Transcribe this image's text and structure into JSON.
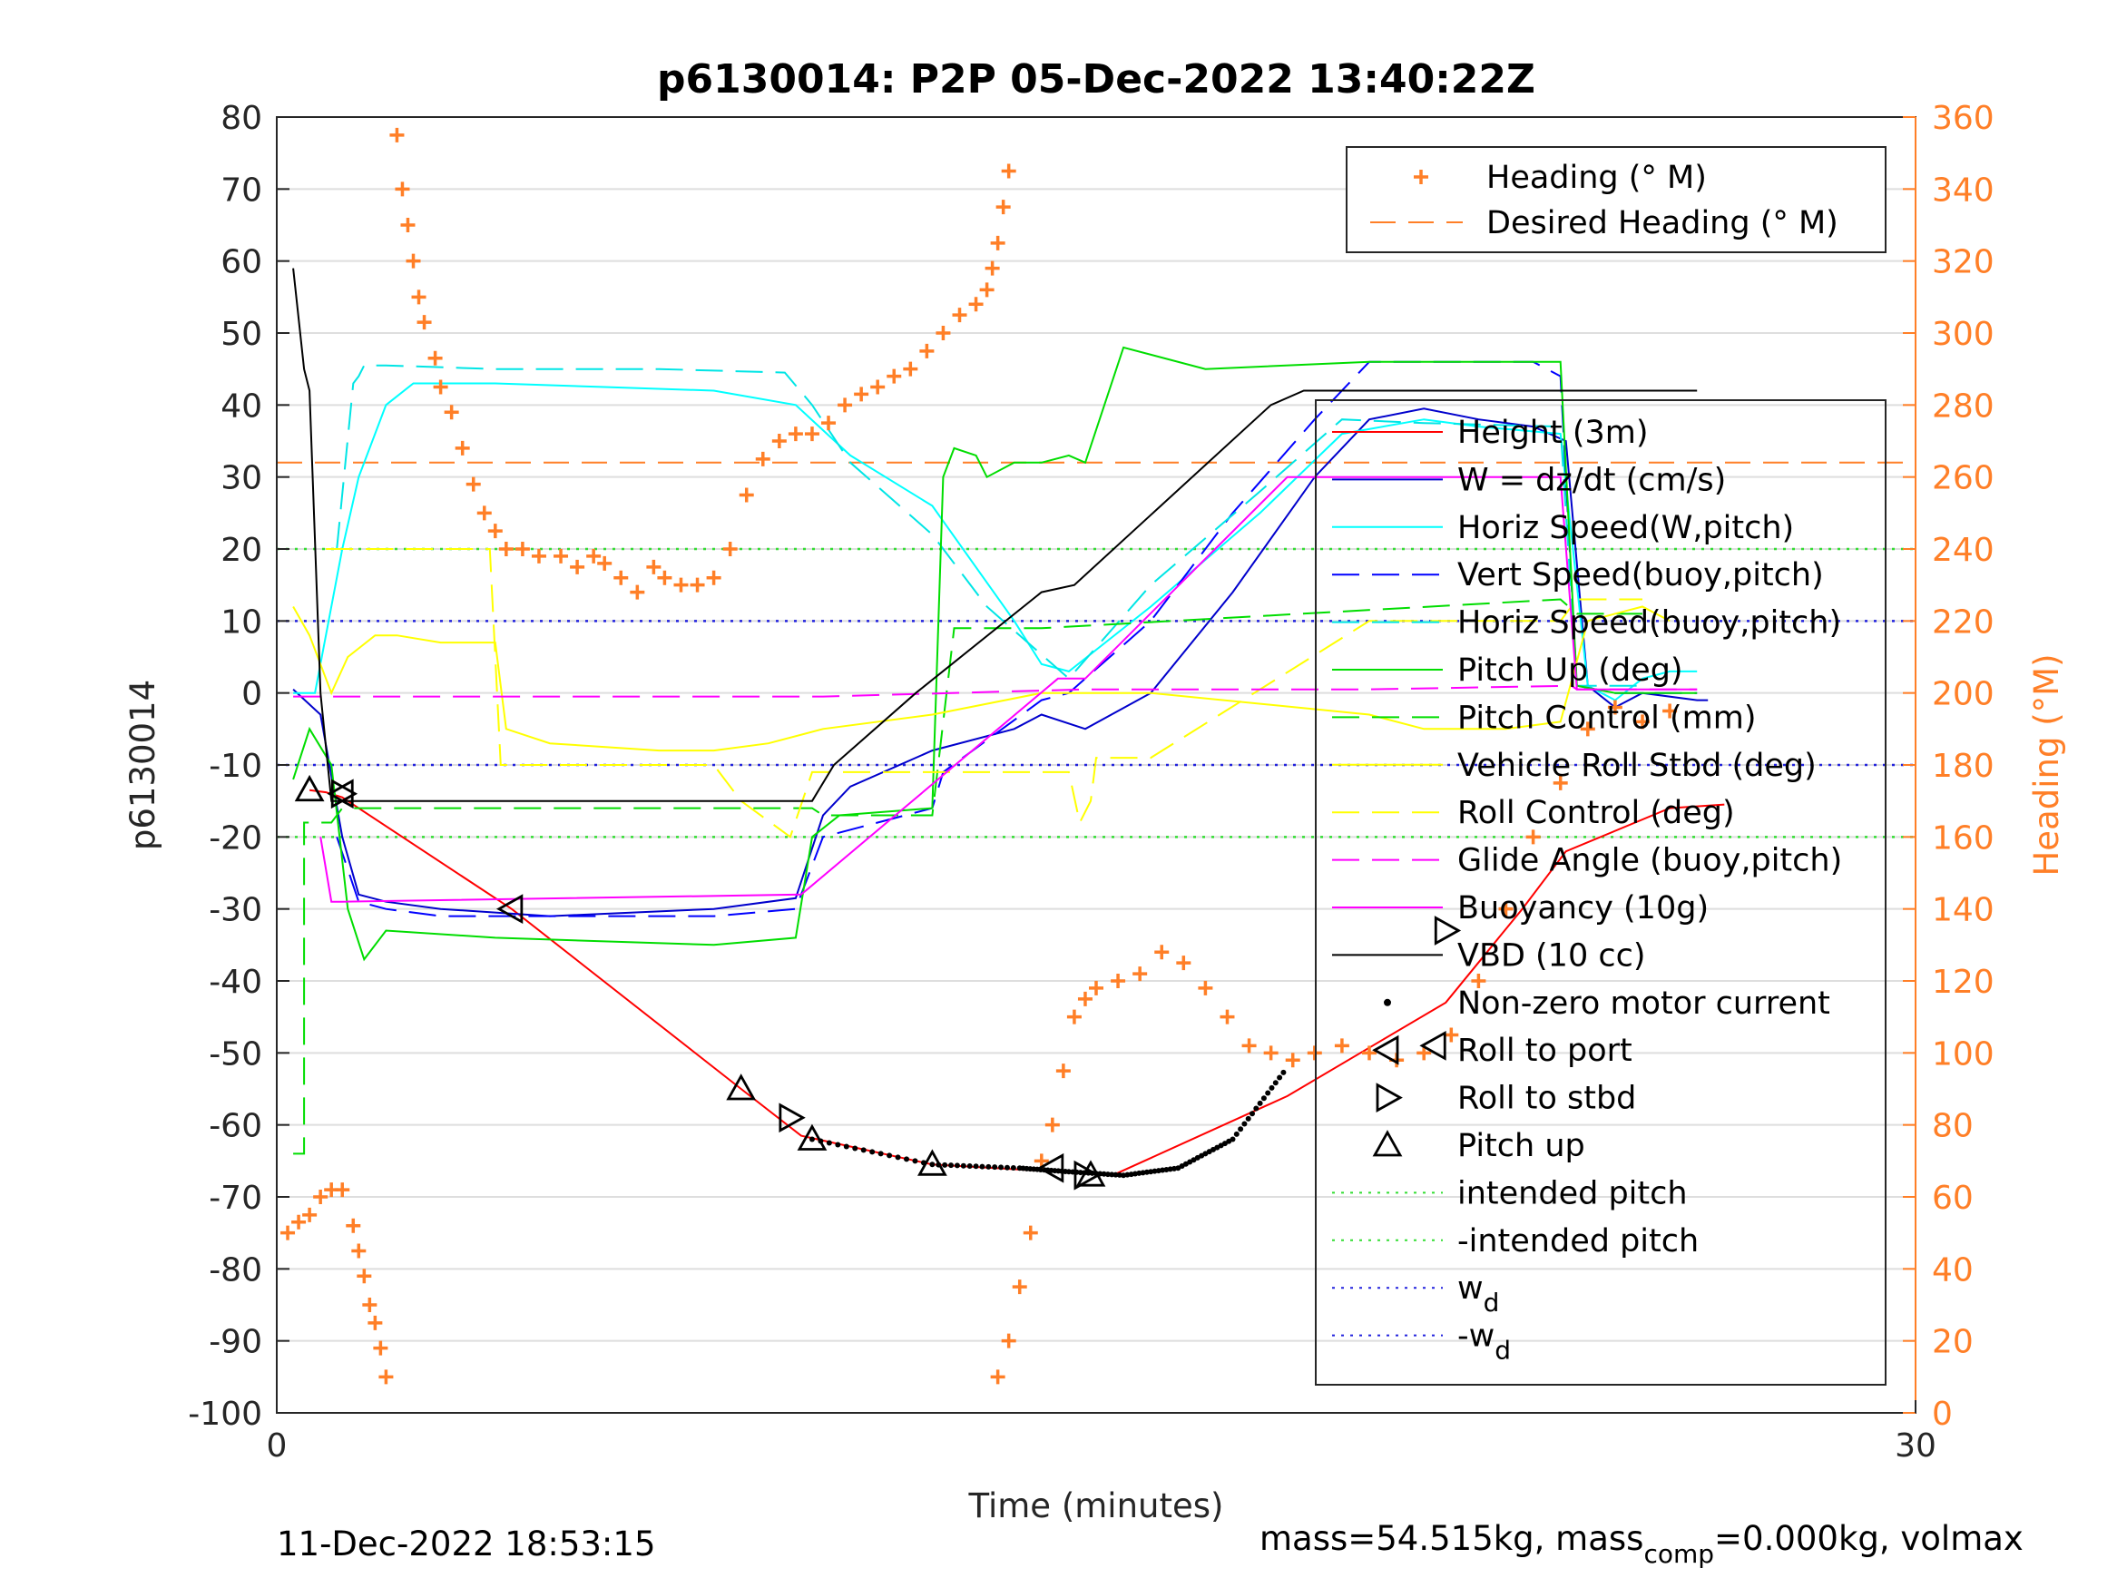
{
  "title": "p6130014: P2P 05-Dec-2022 13:40:22Z",
  "footer_left": "11-Dec-2022 18:53:15",
  "footer_right_parts": [
    "mass=54.515kg, mass",
    "comp",
    "=0.000kg, volmax"
  ],
  "colors": {
    "height": "#ff0000",
    "w": "#0000cc",
    "horiz_w": "#00ffff",
    "vert_buoy": "#0000ff",
    "horiz_buoy": "#00e5e5",
    "pitch_up": "#00dd00",
    "pitch_control": "#00dd00",
    "roll": "#ffff00",
    "roll_control": "#ffff00",
    "glide": "#ff00ff",
    "buoyancy": "#ff00ff",
    "vbd": "#000000",
    "heading": "#ff7f27",
    "intended": "#33dd33",
    "wd": "#2222dd"
  },
  "chart_data": {
    "type": "line",
    "xlabel": "Time (minutes)",
    "ylabel": "p6130014",
    "ylabel_right": "Heading (°M)",
    "xlim": [
      0,
      30
    ],
    "ylim": [
      -100,
      80
    ],
    "ylim_right": [
      0,
      360
    ],
    "x_ticks": [
      0,
      30
    ],
    "y_ticks": [
      80,
      70,
      60,
      50,
      40,
      30,
      20,
      10,
      0,
      -10,
      -20,
      -30,
      -40,
      -50,
      -60,
      -70,
      -80,
      -90,
      -100
    ],
    "y_ticks_right": [
      360,
      340,
      320,
      300,
      280,
      260,
      240,
      220,
      200,
      180,
      160,
      140,
      120,
      100,
      80,
      60,
      40,
      20,
      0
    ],
    "grid": true,
    "legend_right": [
      "Heading (° M)",
      "Desired Heading (° M)"
    ],
    "legend_main": [
      "Height (3m)",
      "W = dz/dt (cm/s)",
      "Horiz Speed(W,pitch)",
      "Vert Speed(buoy,pitch)",
      "Horiz Speed(buoy,pitch)",
      "Pitch Up (deg)",
      "Pitch Control (mm)",
      "Vehicle Roll Stbd (deg)",
      "Roll Control (deg)",
      "Glide Angle (buoy,pitch)",
      "Buoyancy (10g)",
      "VBD (10 cc)",
      "Non-zero motor current",
      "Roll to port",
      "Roll to stbd",
      "Pitch up",
      "intended pitch",
      "-intended pitch",
      "w",
      "-w"
    ],
    "legend_subscripts": {
      "w": "d",
      "-w": "d"
    },
    "series": [
      {
        "name": "Height (3m)",
        "x": [
          0.6,
          0.9,
          1.2,
          4.3,
          8.5,
          9.6,
          12,
          14.3,
          15.3,
          18.5,
          21.4,
          22.8,
          23.6,
          25.5,
          26.5
        ],
        "y": [
          -13.5,
          -13.8,
          -14.5,
          -30,
          -55,
          -61.5,
          -65.5,
          -66.5,
          -67,
          -56,
          -43,
          -30,
          -22,
          -16,
          -15.5
        ]
      },
      {
        "name": "W = dz/dt (cm/s)",
        "x": [
          0.3,
          0.8,
          1.2,
          1.5,
          2,
          3,
          5,
          8,
          9.5,
          10,
          10.5,
          12,
          13.5,
          14,
          14.8,
          16,
          17.5,
          19,
          20,
          21,
          22,
          23,
          23.6,
          24,
          24.5,
          25,
          26,
          26.2
        ],
        "y": [
          0.5,
          -3,
          -20,
          -28,
          -29,
          -30,
          -31,
          -30,
          -28.5,
          -17,
          -13,
          -8,
          -5,
          -3,
          -5,
          0,
          14,
          30,
          38,
          39.5,
          38,
          37,
          35,
          1,
          -2,
          0,
          -1,
          -1
        ]
      },
      {
        "name": "Horiz Speed(W,pitch)",
        "x": [
          0.3,
          0.7,
          1.2,
          1.5,
          2,
          2.5,
          4,
          6,
          8,
          9.5,
          10.5,
          12,
          13.5,
          14,
          14.5,
          16,
          18,
          19.5,
          21,
          22,
          23.5,
          24,
          24.5,
          25,
          25.5,
          26
        ],
        "y": [
          0,
          0,
          20,
          30,
          40,
          43,
          43,
          42.5,
          42,
          40,
          33,
          26,
          10,
          4,
          3,
          12,
          25,
          36,
          38,
          37,
          36,
          1,
          -1,
          2,
          3,
          3
        ]
      },
      {
        "name": "Vert Speed(buoy,pitch)",
        "x": [
          1.1,
          1.5,
          2,
          3,
          5,
          8,
          9.5,
          10,
          11,
          12,
          12.2,
          14,
          14.5,
          16,
          17.5,
          19,
          20,
          21.5,
          23,
          23.5,
          23.8,
          24.5,
          26
        ],
        "y": [
          -20,
          -29,
          -30,
          -31,
          -31,
          -31,
          -30,
          -20,
          -18,
          -16,
          -11,
          -1,
          0,
          10,
          25,
          38,
          46,
          46,
          46,
          44,
          1,
          0,
          0
        ]
      },
      {
        "name": "Horiz Speed(buoy,pitch)",
        "x": [
          1.1,
          1.4,
          1.5,
          1.6,
          2,
          4,
          7,
          9.3,
          9.8,
          10.5,
          12,
          13,
          14.5,
          16,
          18,
          19.5,
          21,
          23.5,
          23.8,
          25
        ],
        "y": [
          20,
          43,
          44,
          45.5,
          45.5,
          45,
          45,
          44.5,
          40,
          32,
          22,
          12,
          2,
          15,
          28,
          38,
          37.5,
          37,
          1,
          1
        ]
      },
      {
        "name": "Pitch Up (deg)",
        "x": [
          0.3,
          0.6,
          1.0,
          1.3,
          1.6,
          2,
          4,
          8,
          9.5,
          9.8,
          10.3,
          12,
          12.2,
          12.4,
          12.8,
          13,
          13.5,
          14,
          14.5,
          14.8,
          15.5,
          17,
          20,
          23.5,
          23.8,
          24.5,
          25.5,
          26
        ],
        "y": [
          -12,
          -5,
          -10,
          -30,
          -37,
          -33,
          -34,
          -35,
          -34,
          -20,
          -17,
          -16,
          30,
          34,
          33,
          30,
          32,
          32,
          33,
          32,
          48,
          45,
          46,
          46,
          1,
          0,
          0,
          0
        ]
      },
      {
        "name": "Pitch Control (mm)",
        "x": [
          0.3,
          0.5,
          0.5,
          1.0,
          1.2,
          9.8,
          10,
          12,
          12.4,
          14,
          23.5,
          23.8,
          25
        ],
        "y": [
          -64,
          -64,
          -18,
          -18,
          -16,
          -16,
          -17,
          -17,
          9,
          9,
          13,
          11,
          11
        ]
      },
      {
        "name": "Vehicle Roll Stbd (deg)",
        "x": [
          0.3,
          0.6,
          1.0,
          1.3,
          1.8,
          2.2,
          3,
          4,
          4.2,
          5,
          7,
          8,
          9,
          10,
          12,
          14,
          16,
          20,
          21,
          22.5,
          23.5,
          24,
          25,
          25.5
        ],
        "y": [
          12,
          8,
          0,
          5,
          8,
          8,
          7,
          7,
          -5,
          -7,
          -8,
          -8,
          -7,
          -5,
          -3,
          0,
          0,
          -3,
          -5,
          -5,
          -4,
          10,
          12,
          10
        ]
      },
      {
        "name": "Roll Control (deg)",
        "x": [
          0.9,
          3.9,
          4.1,
          8,
          8.5,
          9.4,
          9.8,
          14.5,
          14.7,
          14.9,
          15,
          16,
          20,
          23.5,
          23.8,
          25
        ],
        "y": [
          20,
          20,
          -10,
          -10,
          -15,
          -20,
          -11,
          -11,
          -18,
          -15,
          -9,
          -9,
          10,
          10,
          13,
          13
        ]
      },
      {
        "name": "Glide Angle (buoy,pitch)",
        "x": [
          0.3,
          1.0,
          1.2,
          5,
          10,
          14.8,
          20,
          23.7,
          23.8,
          26
        ],
        "y": [
          -0.5,
          -0.5,
          -0.5,
          -0.5,
          -0.5,
          0.5,
          0.5,
          1,
          0.5,
          0.5
        ]
      },
      {
        "name": "Buoyancy (10g)",
        "x": [
          0.8,
          1.0,
          1.2,
          9.6,
          14.3,
          14.8,
          18.5,
          23.5,
          23.8,
          26
        ],
        "y": [
          -20,
          -29,
          -29,
          -28,
          2,
          2,
          30,
          30,
          0.5,
          0.5
        ]
      },
      {
        "name": "VBD (10 cc)",
        "x": [
          0.3,
          0.5,
          0.6,
          0.8,
          1.0,
          1.2,
          9.8,
          10.2,
          11.7,
          14,
          14.6,
          18.2,
          18.8,
          26
        ],
        "y": [
          59,
          45,
          42,
          0,
          -15,
          -15,
          -15,
          -10,
          0,
          14,
          15,
          40,
          42,
          42
        ]
      }
    ],
    "markers": {
      "roll_to_port_x": [
        1.2,
        4.3,
        14.2,
        21.2
      ],
      "roll_to_port_y": [
        -14,
        -30,
        -66,
        -49
      ],
      "roll_to_stbd_x": [
        1.2,
        9.4,
        14.8,
        21.4
      ],
      "roll_to_stbd_y": [
        -14,
        -59,
        -67,
        -33
      ],
      "pitch_up_x": [
        0.6,
        8.5,
        9.8,
        12,
        14.9
      ],
      "pitch_up_y": [
        -13.5,
        -55,
        -62,
        -65.5,
        -67
      ]
    },
    "motor_current": {
      "x": [
        9.8,
        12,
        13.6,
        14.5,
        15.5,
        16.5,
        17.5,
        18.5
      ],
      "y": [
        -62,
        -65.5,
        -66,
        -66.5,
        -67,
        -66,
        -62,
        -52
      ]
    },
    "heading": {
      "x": [
        0.2,
        0.4,
        0.6,
        0.8,
        1.0,
        1.2,
        1.4,
        1.5,
        1.6,
        1.7,
        1.8,
        1.9,
        2.0,
        2.2,
        2.3,
        2.4,
        2.5,
        2.6,
        2.7,
        2.9,
        3.0,
        3.2,
        3.4,
        3.6,
        3.8,
        4.0,
        4.2,
        4.5,
        4.8,
        5.2,
        5.5,
        5.8,
        6.0,
        6.3,
        6.6,
        6.9,
        7.1,
        7.4,
        7.7,
        8.0,
        8.3,
        8.6,
        8.9,
        9.2,
        9.5,
        9.8,
        10.1,
        10.4,
        10.7,
        11.0,
        11.3,
        11.6,
        11.9,
        12.2,
        12.5,
        12.8,
        13.0,
        13.1,
        13.2,
        13.3,
        13.4,
        13.2,
        13.4,
        13.6,
        13.8,
        14.0,
        14.2,
        14.4,
        14.6,
        14.8,
        15.0,
        15.4,
        15.8,
        16.2,
        16.6,
        17.0,
        17.4,
        17.8,
        18.2,
        18.6,
        19.0,
        19.5,
        20.0,
        20.5,
        21.0,
        21.5,
        22.0,
        22.5,
        23.0,
        23.5,
        24.0,
        24.5,
        25.0,
        25.5
      ],
      "y": [
        50,
        53,
        55,
        60,
        62,
        62,
        52,
        45,
        38,
        30,
        25,
        18,
        10,
        355,
        340,
        330,
        320,
        310,
        303,
        293,
        285,
        278,
        268,
        258,
        250,
        245,
        240,
        240,
        238,
        238,
        235,
        238,
        236,
        232,
        228,
        235,
        232,
        230,
        230,
        232,
        240,
        255,
        265,
        270,
        272,
        272,
        275,
        280,
        283,
        285,
        288,
        290,
        295,
        300,
        305,
        308,
        312,
        318,
        325,
        335,
        345,
        10,
        20,
        35,
        50,
        70,
        80,
        95,
        110,
        115,
        118,
        120,
        122,
        128,
        125,
        118,
        110,
        102,
        100,
        98,
        100,
        102,
        100,
        98,
        100,
        105,
        120,
        140,
        160,
        175,
        190,
        196,
        192,
        195
      ]
    },
    "desired_heading": 264,
    "intended_pitch": 20,
    "wd": 10
  }
}
